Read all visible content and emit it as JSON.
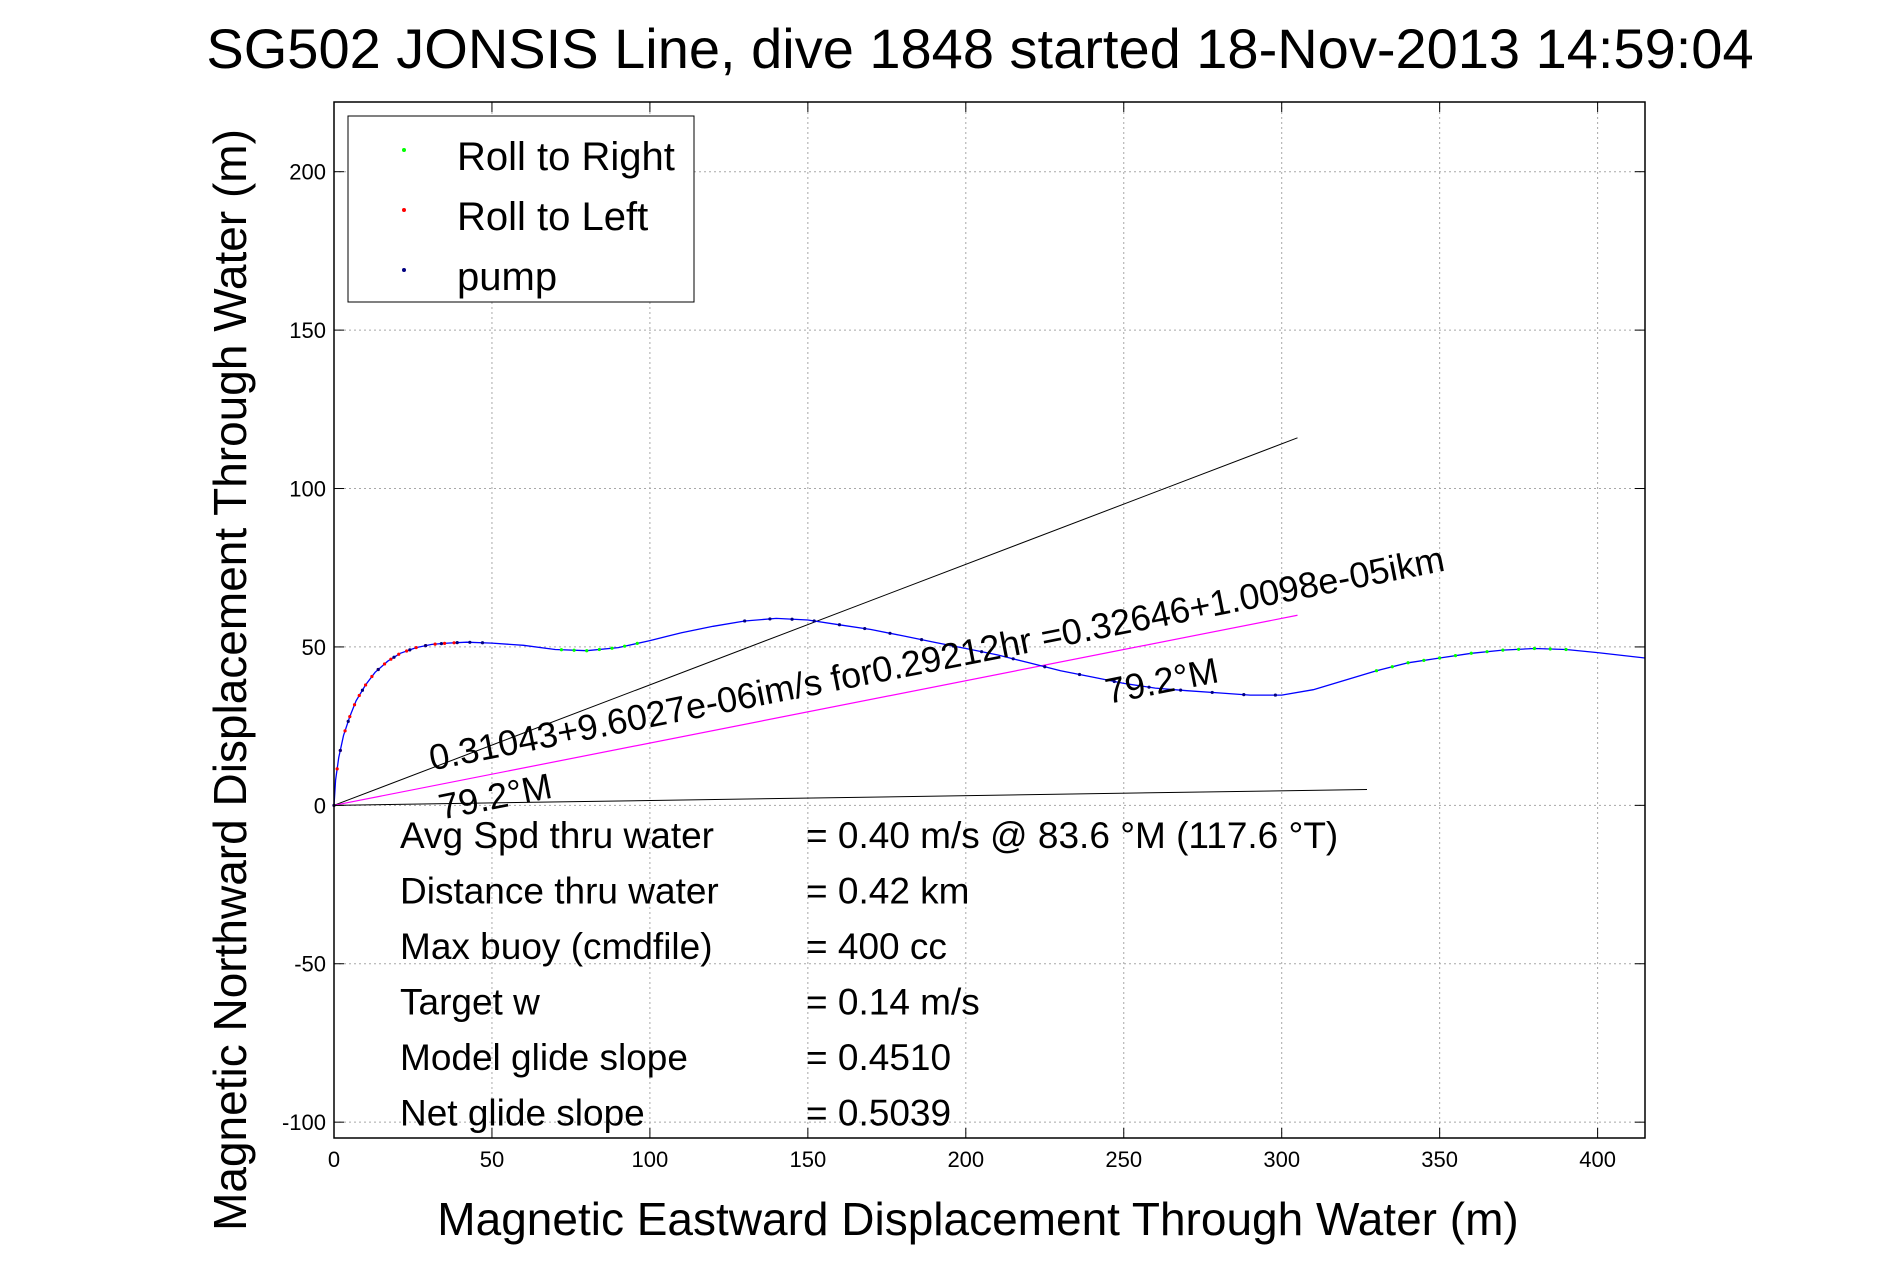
{
  "chart_data": {
    "type": "line",
    "title": "SG502 JONSIS Line, dive 1848 started 18-Nov-2013 14:59:04",
    "xlabel": "Magnetic Eastward Displacement Through Water (m)",
    "ylabel": "Magnetic Northward Displacement Through Water (m)",
    "xlim": [
      0,
      415
    ],
    "ylim": [
      -105,
      222
    ],
    "xticks": [
      0,
      50,
      100,
      150,
      200,
      250,
      300,
      350,
      400
    ],
    "yticks": [
      -100,
      -50,
      0,
      50,
      100,
      150,
      200
    ],
    "grid": true,
    "legend": {
      "placement": "top-left",
      "entries": [
        {
          "label": "Roll to Right",
          "color": "#00ff00"
        },
        {
          "label": "Roll to Left",
          "color": "#ff0000"
        },
        {
          "label": "pump",
          "color": "#000080"
        }
      ]
    },
    "track": {
      "color": "#0000ff",
      "x": [
        0,
        0.5,
        1.5,
        3,
        5,
        7,
        10,
        13,
        17,
        21,
        26,
        31,
        36,
        42,
        50,
        60,
        70,
        80,
        90,
        100,
        110,
        120,
        130,
        140,
        150,
        160,
        170,
        180,
        190,
        200,
        210,
        220,
        230,
        240,
        250,
        260,
        270,
        280,
        290,
        300,
        310,
        320,
        330,
        340,
        350,
        360,
        370,
        380,
        390,
        400,
        415
      ],
      "y": [
        0,
        8,
        15,
        22,
        28,
        33,
        38,
        42,
        45.5,
        48,
        49.8,
        50.8,
        51.2,
        51.5,
        51.2,
        50.5,
        49.2,
        48.8,
        49.8,
        52,
        54.5,
        56.5,
        58.2,
        59,
        58.5,
        57,
        55.5,
        53.5,
        51.5,
        49.5,
        47.5,
        45,
        42.5,
        40.5,
        38.5,
        37,
        36.2,
        35.5,
        34.8,
        34.8,
        36.5,
        39.5,
        42.5,
        45,
        46.5,
        48,
        49,
        49.5,
        49.2,
        48.2,
        46.5
      ]
    },
    "markers": {
      "roll_to_left_x": [
        0,
        1,
        2,
        3.5,
        5,
        6.5,
        8,
        10,
        12,
        14,
        16,
        18,
        20.5,
        23,
        26,
        29,
        32,
        35,
        38
      ],
      "roll_to_right_x": [
        72,
        76,
        80,
        84,
        88,
        92,
        96,
        330,
        335,
        340,
        345,
        350,
        355,
        360,
        365,
        370,
        375,
        380,
        385,
        390
      ],
      "pump_x": [
        0,
        2,
        4.5,
        9,
        14,
        19,
        24,
        29,
        34,
        39,
        43,
        47,
        130,
        138,
        145,
        152,
        160,
        168,
        176,
        186,
        196,
        205,
        215,
        225,
        236,
        247,
        258,
        268,
        278,
        288,
        298
      ]
    },
    "fit_line": {
      "x": [
        0,
        305
      ],
      "y": [
        0,
        60
      ],
      "color": "#ff00ff"
    },
    "reference_lines": [
      {
        "x": [
          0,
          305
        ],
        "y": [
          0,
          116
        ],
        "color": "#000000"
      },
      {
        "x": [
          0,
          327
        ],
        "y": [
          0,
          5
        ],
        "color": "#000000"
      }
    ],
    "fit_labels": [
      {
        "text": "0.31043+9.6027e-06im/s for0.29212hr =0.32646+1.0098e-05ikm",
        "x": 31,
        "y": 11
      },
      {
        "text": "79.2°M",
        "x": 34,
        "y": -4.5
      },
      {
        "text": "79.2°M",
        "x": 245,
        "y": 32
      }
    ],
    "annotations": [
      {
        "label": "Avg Spd thru water",
        "value": "=  0.40 m/s @  83.6 °M (117.6 °T)"
      },
      {
        "label": "Distance thru water",
        "value": "=  0.42 km"
      },
      {
        "label": "Max buoy (cmdfile)",
        "value": "= 400 cc"
      },
      {
        "label": "Target w",
        "value": "= 0.14 m/s"
      },
      {
        "label": "Model glide slope",
        "value": "= 0.4510"
      },
      {
        "label": "Net glide slope",
        "value": "= 0.5039"
      }
    ]
  }
}
